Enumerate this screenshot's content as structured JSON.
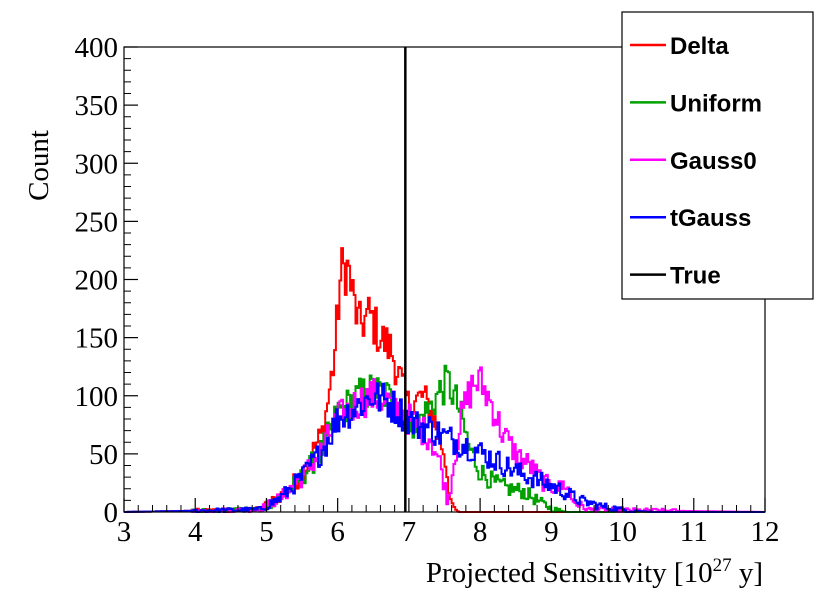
{
  "chart_data": {
    "type": "line",
    "ylabel": "Count",
    "xlabel": {
      "main": "Projected Sensitivity [10",
      "sup": "27",
      "tail": " y]"
    },
    "xlim": [
      3,
      12
    ],
    "ylim": [
      0,
      400
    ],
    "x_ticks": [
      3,
      4,
      5,
      6,
      7,
      8,
      9,
      10,
      11,
      12
    ],
    "y_ticks": [
      0,
      50,
      100,
      150,
      200,
      250,
      300,
      350,
      400
    ],
    "true_value": 6.95,
    "legend_position": "top-right",
    "series": [
      {
        "name": "Delta",
        "color": "#ff0000",
        "x": [
          3.0,
          4.9,
          5.2,
          5.5,
          5.8,
          5.95,
          6.05,
          6.15,
          6.2,
          6.3,
          6.45,
          6.6,
          6.75,
          6.9,
          7.0,
          7.2,
          7.35,
          7.5,
          7.6,
          7.7,
          7.8,
          12.0
        ],
        "y": [
          0,
          2,
          14,
          32,
          70,
          130,
          208,
          210,
          190,
          160,
          170,
          150,
          140,
          110,
          90,
          100,
          80,
          50,
          5,
          0,
          0,
          0
        ]
      },
      {
        "name": "Uniform",
        "color": "#00a000",
        "x": [
          3.0,
          4.9,
          5.2,
          5.5,
          5.8,
          6.0,
          6.3,
          6.5,
          6.7,
          6.9,
          7.1,
          7.3,
          7.45,
          7.55,
          7.7,
          7.85,
          8.0,
          8.2,
          8.4,
          8.6,
          8.8,
          9.0,
          9.2,
          12.0
        ],
        "y": [
          0,
          2,
          12,
          30,
          55,
          85,
          100,
          105,
          100,
          85,
          75,
          90,
          105,
          112,
          90,
          55,
          35,
          25,
          20,
          18,
          10,
          3,
          0,
          0
        ]
      },
      {
        "name": "Gauss0",
        "color": "#ff00ff",
        "x": [
          3.0,
          4.9,
          5.2,
          5.5,
          5.8,
          6.0,
          6.3,
          6.5,
          6.7,
          6.9,
          7.1,
          7.3,
          7.45,
          7.55,
          7.65,
          7.75,
          7.9,
          8.0,
          8.15,
          8.3,
          8.5,
          8.7,
          8.9,
          9.1,
          9.2,
          9.3,
          9.5,
          12.0
        ],
        "y": [
          0,
          2,
          12,
          30,
          55,
          80,
          95,
          100,
          95,
          85,
          75,
          65,
          40,
          8,
          50,
          85,
          110,
          112,
          95,
          70,
          50,
          40,
          25,
          20,
          25,
          10,
          2,
          0
        ]
      },
      {
        "name": "tGauss",
        "color": "#0000ff",
        "x": [
          3.0,
          4.9,
          5.2,
          5.5,
          5.8,
          6.0,
          6.3,
          6.5,
          6.7,
          6.9,
          7.1,
          7.3,
          7.5,
          7.7,
          7.9,
          8.1,
          8.3,
          8.5,
          8.7,
          8.9,
          9.1,
          9.4,
          9.7,
          10.0,
          10.4,
          12.0
        ],
        "y": [
          0,
          2,
          12,
          30,
          55,
          80,
          92,
          100,
          95,
          85,
          75,
          72,
          65,
          60,
          55,
          48,
          42,
          35,
          30,
          25,
          20,
          10,
          5,
          2,
          0,
          0
        ]
      }
    ],
    "legend": [
      {
        "label": "Delta",
        "color": "#ff0000"
      },
      {
        "label": "Uniform",
        "color": "#00a000"
      },
      {
        "label": "Gauss0",
        "color": "#ff00ff"
      },
      {
        "label": "tGauss",
        "color": "#0000ff"
      },
      {
        "label": "True",
        "color": "#000000"
      }
    ]
  }
}
